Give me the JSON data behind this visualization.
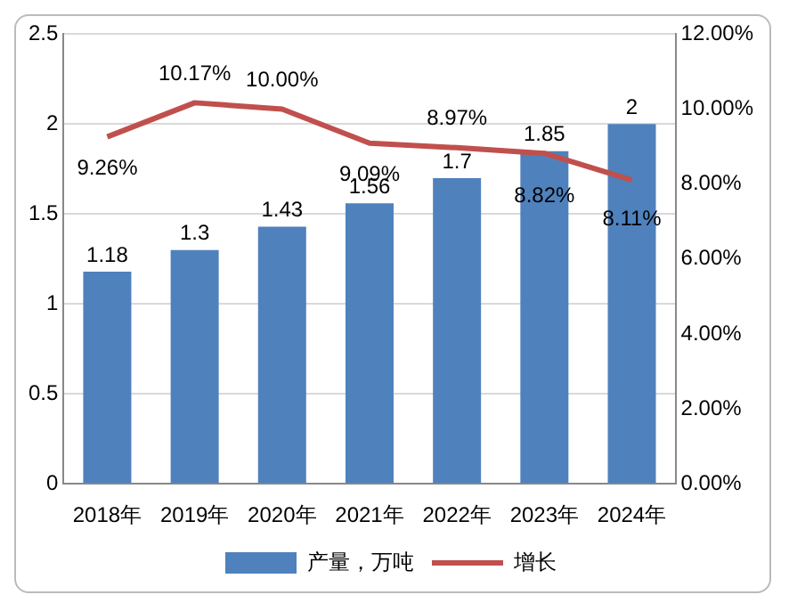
{
  "chart_data": {
    "type": "bar",
    "categories": [
      "2018年",
      "2019年",
      "2020年",
      "2021年",
      "2022年",
      "2023年",
      "2024年"
    ],
    "series": [
      {
        "name": "产量，万吨",
        "color": "#4f81bd",
        "values": [
          1.18,
          1.3,
          1.43,
          1.56,
          1.7,
          1.85,
          2
        ],
        "value_labels": [
          "1.18",
          "1.3",
          "1.43",
          "1.56",
          "1.7",
          "1.85",
          "2"
        ]
      },
      {
        "name": "增长",
        "type": "line",
        "axis": "y2",
        "color": "#c0504d",
        "values": [
          9.26,
          10.17,
          10.0,
          9.09,
          8.97,
          8.82,
          8.11
        ],
        "value_labels": [
          "9.26%",
          "10.17%",
          "10.00%",
          "9.09%",
          "8.97%",
          "8.82%",
          "8.11%"
        ]
      }
    ],
    "ylim": [
      0,
      2.5
    ],
    "yticks": [
      0,
      0.5,
      1,
      1.5,
      2,
      2.5
    ],
    "y2lim": [
      0,
      12
    ],
    "y2ticks": [
      {
        "value": 0,
        "label": "0.00%"
      },
      {
        "value": 2,
        "label": "2.00%"
      },
      {
        "value": 4,
        "label": "4.00%"
      },
      {
        "value": 6,
        "label": "6.00%"
      },
      {
        "value": 8,
        "label": "8.00%"
      },
      {
        "value": 10,
        "label": "10.00%"
      },
      {
        "value": 12,
        "label": "12.00%"
      }
    ],
    "grid": "y",
    "legend": "bottom",
    "marker": "none",
    "line_style": "solid"
  }
}
